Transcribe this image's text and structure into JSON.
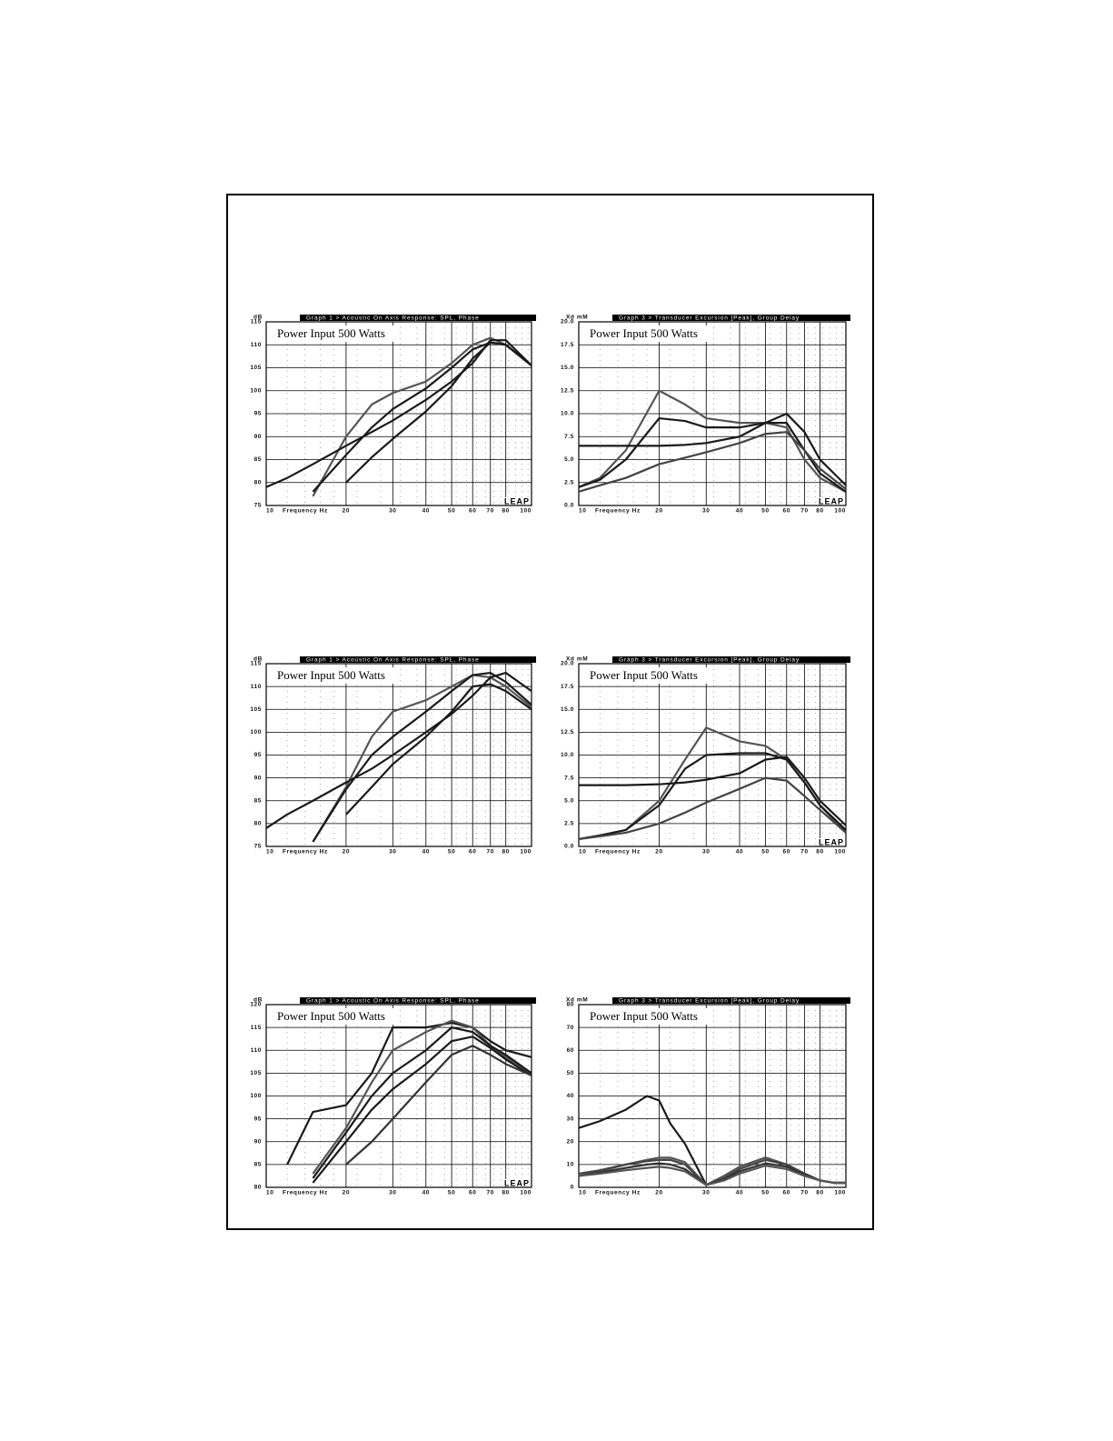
{
  "chart_data": [
    {
      "type": "line",
      "title": "Graph 1 > Acoustic On Axis Response: SPL, Phase",
      "y_label": "dB",
      "x_label": "Frequency Hz",
      "annotation": "Power Input 500 Watts",
      "logo": "LEAP",
      "log_x": true,
      "grid": true,
      "x": [
        10,
        12,
        15,
        20,
        25,
        30,
        40,
        50,
        60,
        70,
        80,
        100
      ],
      "xlim": [
        10,
        100
      ],
      "xticks": [
        10,
        20,
        30,
        40,
        50,
        60,
        70,
        80,
        100
      ],
      "ylim": [
        75,
        115
      ],
      "yticks": [
        75,
        80,
        85,
        90,
        95,
        100,
        105,
        110,
        115
      ],
      "series": [
        {
          "color": "#555555",
          "values": [
            null,
            null,
            77,
            90,
            97,
            99.5,
            102,
            106,
            110,
            111.5,
            110,
            105.5
          ]
        },
        {
          "color": "#1a1a1a",
          "values": [
            null,
            null,
            78,
            86,
            92,
            96,
            100.5,
            105,
            109,
            110.5,
            110,
            105.5
          ]
        },
        {
          "color": "#1a1a1a",
          "values": [
            null,
            null,
            null,
            80,
            85.5,
            89.5,
            95.5,
            101,
            107,
            110.5,
            110,
            105.5
          ]
        },
        {
          "color": "#1a1a1a",
          "values": [
            79,
            81,
            84,
            88,
            91,
            93.5,
            98,
            102,
            106,
            111,
            111,
            105.5
          ]
        }
      ]
    },
    {
      "type": "line",
      "title": "Graph 3 > Transducer Excursion [Peak], Group Delay",
      "y_label": "Xd mM",
      "x_label": "Frequency Hz",
      "annotation": "Power Input 500 Watts",
      "logo": "LEAP",
      "log_x": true,
      "grid": true,
      "x": [
        10,
        12,
        15,
        20,
        25,
        30,
        40,
        50,
        60,
        70,
        80,
        100
      ],
      "xlim": [
        10,
        100
      ],
      "xticks": [
        10,
        20,
        30,
        40,
        50,
        60,
        70,
        80,
        100
      ],
      "ylim": [
        0,
        20
      ],
      "yticks": [
        {
          "value": 0,
          "label": "0.0"
        },
        2.5,
        {
          "value": 5,
          "label": "5.0"
        },
        7.5,
        {
          "value": 10,
          "label": "10.0"
        },
        12.5,
        {
          "value": 15,
          "label": "15.0"
        },
        17.5,
        {
          "value": 20,
          "label": "20.0"
        }
      ],
      "series": [
        {
          "color": "#555555",
          "values": [
            2,
            3,
            6,
            12.5,
            11,
            9.5,
            9,
            9,
            8.5,
            5,
            3,
            1.5
          ]
        },
        {
          "color": "#1a1a1a",
          "values": [
            2,
            2.8,
            5,
            9.5,
            9.2,
            8.5,
            8.5,
            9,
            9,
            6,
            3.5,
            1.5
          ]
        },
        {
          "color": "#1a1a1a",
          "values": [
            6.5,
            6.5,
            6.5,
            6.5,
            6.6,
            6.8,
            7.5,
            9,
            10,
            8,
            5,
            2.2
          ]
        },
        {
          "color": "#444444",
          "values": [
            1.5,
            2.2,
            3,
            4.5,
            5.2,
            5.8,
            6.8,
            7.8,
            8,
            6,
            4,
            1.8
          ]
        }
      ]
    },
    {
      "type": "line",
      "title": "Graph 1 > Acoustic On Axis Response: SPL, Phase",
      "y_label": "dB",
      "x_label": "Frequency Hz",
      "annotation": "Power Input 500 Watts",
      "log_x": true,
      "grid": true,
      "x": [
        10,
        12,
        15,
        20,
        25,
        30,
        40,
        50,
        60,
        70,
        80,
        100
      ],
      "xlim": [
        10,
        100
      ],
      "xticks": [
        10,
        20,
        30,
        40,
        50,
        60,
        70,
        80,
        100
      ],
      "ylim": [
        75,
        115
      ],
      "yticks": [
        75,
        80,
        85,
        90,
        95,
        100,
        105,
        110,
        115
      ],
      "series": [
        {
          "color": "#555555",
          "values": [
            null,
            null,
            76,
            88,
            99,
            104.5,
            107,
            110,
            112.5,
            112,
            110,
            105.5
          ]
        },
        {
          "color": "#1a1a1a",
          "values": [
            79,
            82,
            85,
            89,
            92,
            95,
            100,
            104,
            108,
            112,
            113,
            109
          ]
        },
        {
          "color": "#1a1a1a",
          "values": [
            null,
            null,
            76,
            87.5,
            95,
            99,
            104.5,
            109,
            112.5,
            113,
            111,
            106
          ]
        },
        {
          "color": "#1a1a1a",
          "values": [
            null,
            null,
            null,
            82,
            88,
            93,
            99,
            104.5,
            110,
            110.5,
            109,
            105
          ]
        }
      ]
    },
    {
      "type": "line",
      "title": "Graph 3 > Transducer Excursion [Peak], Group Delay",
      "y_label": "Xd mM",
      "x_label": "Frequency Hz",
      "annotation": "Power Input 500 Watts",
      "logo": "LEAP",
      "log_x": true,
      "grid": true,
      "x": [
        10,
        12,
        15,
        20,
        25,
        30,
        40,
        50,
        60,
        70,
        80,
        100
      ],
      "xlim": [
        10,
        100
      ],
      "xticks": [
        10,
        20,
        30,
        40,
        50,
        60,
        70,
        80,
        100
      ],
      "ylim": [
        0,
        20
      ],
      "yticks": [
        {
          "value": 0,
          "label": "0.0"
        },
        2.5,
        {
          "value": 5,
          "label": "5.0"
        },
        7.5,
        {
          "value": 10,
          "label": "10.0"
        },
        12.5,
        {
          "value": 15,
          "label": "15.0"
        },
        17.5,
        {
          "value": 20,
          "label": "20.0"
        }
      ],
      "series": [
        {
          "color": "#555555",
          "values": [
            0.8,
            1.2,
            1.8,
            5,
            9.5,
            13,
            11.5,
            11,
            9.5,
            7,
            4.5,
            1.5
          ]
        },
        {
          "color": "#1a1a1a",
          "values": [
            0.8,
            1.2,
            1.8,
            4.5,
            8.5,
            10,
            10.2,
            10.2,
            9.5,
            7,
            4.5,
            1.8
          ]
        },
        {
          "color": "#1a1a1a",
          "values": [
            6.7,
            6.7,
            6.7,
            6.8,
            7,
            7.3,
            8,
            9.5,
            9.8,
            7.5,
            5,
            2.3
          ]
        },
        {
          "color": "#444444",
          "values": [
            0.8,
            1.1,
            1.5,
            2.5,
            3.7,
            4.8,
            6.3,
            7.5,
            7.2,
            5.5,
            4,
            1.5
          ]
        }
      ]
    },
    {
      "type": "line",
      "title": "Graph 1 > Acoustic On Axis Response: SPL, Phase",
      "y_label": "dB",
      "x_label": "Frequency Hz",
      "annotation": "Power Input 500 Watts",
      "logo": "LEAP",
      "log_x": true,
      "grid": true,
      "x": [
        10,
        12,
        15,
        20,
        25,
        30,
        40,
        50,
        60,
        70,
        80,
        100
      ],
      "xlim": [
        10,
        100
      ],
      "xticks": [
        10,
        20,
        30,
        40,
        50,
        60,
        70,
        80,
        100
      ],
      "ylim": [
        80,
        120
      ],
      "yticks": [
        80,
        85,
        90,
        95,
        100,
        105,
        110,
        115,
        120
      ],
      "series": [
        {
          "color": "#1a1a1a",
          "values": [
            null,
            85,
            96.5,
            98,
            105,
            115,
            115,
            116,
            115,
            112,
            110,
            108.5
          ]
        },
        {
          "color": "#555555",
          "values": [
            null,
            null,
            83,
            93,
            103,
            110,
            114,
            116.5,
            115,
            111,
            108.5,
            105
          ]
        },
        {
          "color": "#1a1a1a",
          "values": [
            null,
            null,
            82,
            92,
            100,
            105,
            110,
            115,
            114,
            111,
            109,
            105
          ]
        },
        {
          "color": "#1a1a1a",
          "values": [
            null,
            null,
            81,
            90,
            97,
            101.5,
            107,
            112,
            113,
            110.5,
            108,
            104.5
          ]
        },
        {
          "color": "#333333",
          "values": [
            null,
            null,
            null,
            85,
            90,
            95,
            103,
            109,
            111,
            109,
            107,
            104.5
          ]
        }
      ]
    },
    {
      "type": "line",
      "title": "Graph 3 > Transducer Excursion [Peak], Group Delay",
      "y_label": "Xd mM",
      "x_label": "Frequency Hz",
      "annotation": "Power Input 500 Watts",
      "log_x": true,
      "grid": true,
      "x": [
        10,
        12,
        15,
        18,
        20,
        22,
        25,
        30,
        35,
        40,
        50,
        60,
        70,
        80,
        90,
        100
      ],
      "xlim": [
        10,
        100
      ],
      "xticks": [
        10,
        20,
        30,
        40,
        50,
        60,
        70,
        80,
        100
      ],
      "ylim": [
        0,
        80
      ],
      "yticks": [
        0,
        10,
        20,
        30,
        40,
        50,
        60,
        70,
        80
      ],
      "series": [
        {
          "color": "#1a1a1a",
          "values": [
            26,
            29,
            34,
            40,
            38,
            28,
            19,
            1,
            5,
            9,
            13,
            10,
            6,
            3,
            2,
            2
          ]
        },
        {
          "color": "#555555",
          "values": [
            5,
            7,
            10,
            12,
            13,
            13,
            11,
            1,
            5,
            9,
            13,
            10,
            6,
            3,
            2,
            2
          ]
        },
        {
          "color": "#444444",
          "values": [
            6,
            7.5,
            10,
            11.5,
            12,
            12,
            10,
            1,
            4,
            8,
            12,
            10,
            6,
            3,
            2,
            2
          ]
        },
        {
          "color": "#333333",
          "values": [
            5,
            6.5,
            8.5,
            10,
            10.5,
            10,
            8,
            1,
            3.5,
            7,
            10.5,
            9,
            5.5,
            3,
            2,
            2
          ]
        },
        {
          "color": "#555555",
          "values": [
            5,
            6,
            7.5,
            8.5,
            9,
            8.5,
            7,
            1,
            3,
            6,
            9.5,
            8,
            5,
            3,
            2,
            2
          ]
        }
      ]
    }
  ]
}
